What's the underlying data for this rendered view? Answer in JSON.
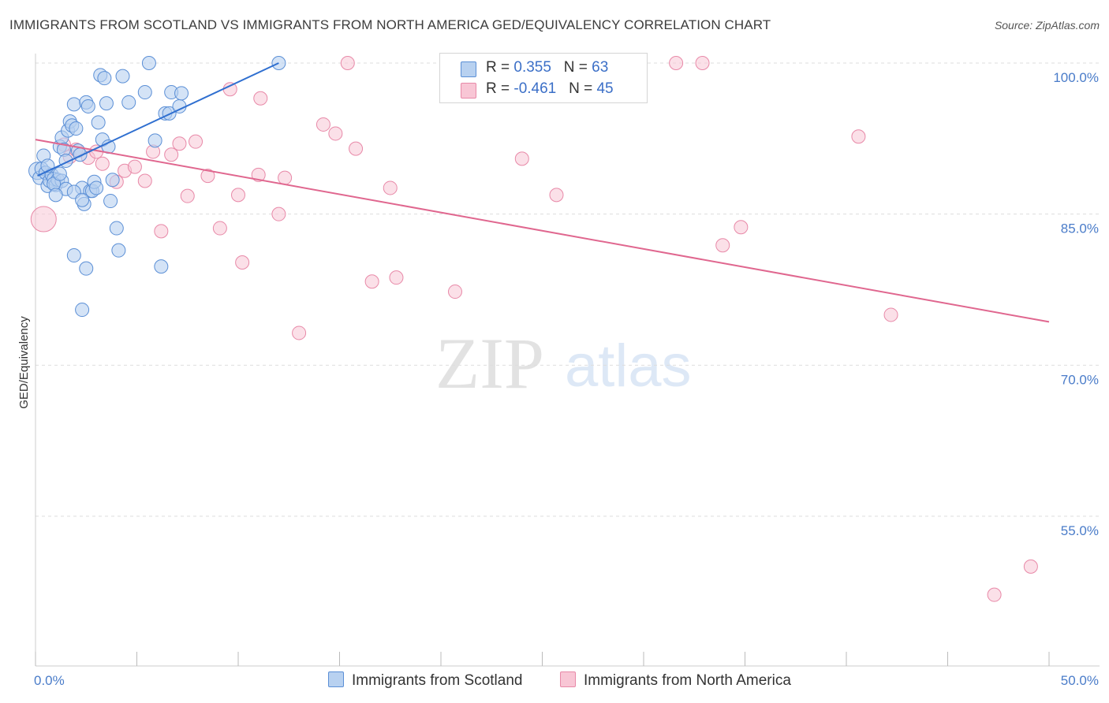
{
  "title": "IMMIGRANTS FROM SCOTLAND VS IMMIGRANTS FROM NORTH AMERICA GED/EQUIVALENCY CORRELATION CHART",
  "source": "Source: ZipAtlas.com",
  "watermark": {
    "zip": "ZIP",
    "atlas": "atlas"
  },
  "legend": {
    "rows": [
      {
        "r_label": "R = ",
        "r_value": "0.355",
        "n_label": "N = ",
        "n_value": "63"
      },
      {
        "r_label": "R = ",
        "r_value": "-0.461",
        "n_label": "N = ",
        "n_value": "45"
      }
    ]
  },
  "bottom_legend": {
    "scotland": "Immigrants from Scotland",
    "north_america": "Immigrants from North America"
  },
  "colors": {
    "scotland_fill": "#b8d1f0",
    "scotland_stroke": "#5b8fd6",
    "scotland_line": "#2f6fd0",
    "na_fill": "#f8c6d5",
    "na_stroke": "#e889a8",
    "na_line": "#e0678f",
    "grid": "#dddddd",
    "axis_label": "#4a7cc9"
  },
  "chart_data": {
    "type": "scatter",
    "title": "IMMIGRANTS FROM SCOTLAND VS IMMIGRANTS FROM NORTH AMERICA GED/EQUIVALENCY CORRELATION CHART",
    "xlabel": "",
    "ylabel": "GED/Equivalency",
    "xlim": [
      0,
      50
    ],
    "ylim": [
      40,
      102.5
    ],
    "x_tick_labels": [
      {
        "value": 0,
        "label": "0.0%"
      },
      {
        "value": 50,
        "label": "50.0%"
      }
    ],
    "y_ticks": [
      {
        "value": 100,
        "label": "100.0%"
      },
      {
        "value": 85,
        "label": "85.0%"
      },
      {
        "value": 70,
        "label": "70.0%"
      },
      {
        "value": 55,
        "label": "55.0%"
      }
    ],
    "series": [
      {
        "name": "Immigrants from Scotland",
        "trend": {
          "x": [
            0.1,
            12.0
          ],
          "y": [
            88.8,
            100.0
          ]
        },
        "points": [
          [
            0.1,
            89.3
          ],
          [
            0.2,
            88.6
          ],
          [
            0.3,
            89.5
          ],
          [
            0.4,
            90.8
          ],
          [
            0.5,
            89.1
          ],
          [
            0.6,
            87.8
          ],
          [
            0.7,
            88.3
          ],
          [
            0.8,
            88.9
          ],
          [
            0.9,
            88.5
          ],
          [
            1.0,
            87.9
          ],
          [
            1.1,
            88.4
          ],
          [
            1.2,
            91.7
          ],
          [
            1.3,
            92.6
          ],
          [
            1.4,
            91.4
          ],
          [
            1.5,
            90.3
          ],
          [
            1.6,
            93.3
          ],
          [
            1.7,
            94.2
          ],
          [
            1.8,
            93.8
          ],
          [
            1.9,
            95.9
          ],
          [
            2.0,
            93.5
          ],
          [
            2.1,
            91.3
          ],
          [
            2.2,
            90.9
          ],
          [
            2.3,
            87.6
          ],
          [
            2.4,
            86.0
          ],
          [
            2.5,
            96.1
          ],
          [
            2.6,
            95.7
          ],
          [
            2.7,
            87.3
          ],
          [
            2.8,
            87.3
          ],
          [
            2.9,
            88.2
          ],
          [
            3.0,
            87.6
          ],
          [
            3.1,
            94.1
          ],
          [
            3.2,
            98.8
          ],
          [
            3.3,
            92.4
          ],
          [
            3.4,
            98.5
          ],
          [
            3.5,
            96.0
          ],
          [
            3.6,
            91.7
          ],
          [
            3.7,
            86.3
          ],
          [
            3.8,
            88.4
          ],
          [
            4.0,
            83.6
          ],
          [
            4.1,
            81.4
          ],
          [
            4.3,
            98.7
          ],
          [
            4.6,
            96.1
          ],
          [
            5.4,
            97.1
          ],
          [
            5.6,
            100.0
          ],
          [
            5.9,
            92.3
          ],
          [
            6.2,
            79.8
          ],
          [
            6.4,
            95.0
          ],
          [
            6.6,
            95.0
          ],
          [
            6.7,
            97.1
          ],
          [
            7.1,
            95.7
          ],
          [
            7.2,
            97.0
          ],
          [
            12.0,
            100.0
          ],
          [
            1.3,
            88.3
          ],
          [
            1.5,
            87.5
          ],
          [
            1.9,
            87.2
          ],
          [
            2.3,
            86.4
          ],
          [
            0.6,
            89.8
          ],
          [
            1.9,
            80.9
          ],
          [
            2.3,
            75.5
          ],
          [
            2.5,
            79.6
          ],
          [
            0.9,
            88.0
          ],
          [
            1.2,
            89.0
          ],
          [
            1.0,
            86.9
          ]
        ]
      },
      {
        "name": "Immigrants from North America",
        "trend": {
          "x": [
            0.0,
            50.0
          ],
          "y": [
            92.4,
            74.3
          ]
        },
        "points": [
          [
            0.4,
            84.5
          ],
          [
            1.7,
            90.7
          ],
          [
            2.0,
            91.4
          ],
          [
            2.6,
            90.6
          ],
          [
            3.0,
            91.2
          ],
          [
            4.0,
            88.2
          ],
          [
            4.4,
            89.3
          ],
          [
            4.9,
            89.7
          ],
          [
            5.4,
            88.3
          ],
          [
            5.8,
            91.2
          ],
          [
            6.2,
            83.3
          ],
          [
            6.7,
            90.9
          ],
          [
            7.1,
            92.0
          ],
          [
            7.5,
            86.8
          ],
          [
            7.9,
            92.2
          ],
          [
            8.5,
            88.8
          ],
          [
            9.1,
            83.6
          ],
          [
            9.6,
            97.4
          ],
          [
            10.0,
            86.9
          ],
          [
            10.2,
            80.2
          ],
          [
            11.0,
            88.9
          ],
          [
            11.1,
            96.5
          ],
          [
            12.0,
            85.0
          ],
          [
            12.3,
            88.6
          ],
          [
            13.0,
            73.2
          ],
          [
            14.2,
            93.9
          ],
          [
            14.8,
            93.0
          ],
          [
            15.4,
            100.0
          ],
          [
            15.8,
            91.5
          ],
          [
            16.6,
            78.3
          ],
          [
            17.5,
            87.6
          ],
          [
            17.8,
            78.7
          ],
          [
            20.7,
            77.3
          ],
          [
            24.0,
            90.5
          ],
          [
            25.7,
            86.9
          ],
          [
            31.6,
            100.0
          ],
          [
            32.9,
            100.0
          ],
          [
            33.9,
            81.9
          ],
          [
            34.8,
            83.7
          ],
          [
            40.6,
            92.7
          ],
          [
            42.2,
            75.0
          ],
          [
            47.3,
            47.2
          ],
          [
            49.1,
            50.0
          ],
          [
            3.3,
            90.0
          ],
          [
            1.4,
            91.9
          ]
        ]
      }
    ]
  }
}
